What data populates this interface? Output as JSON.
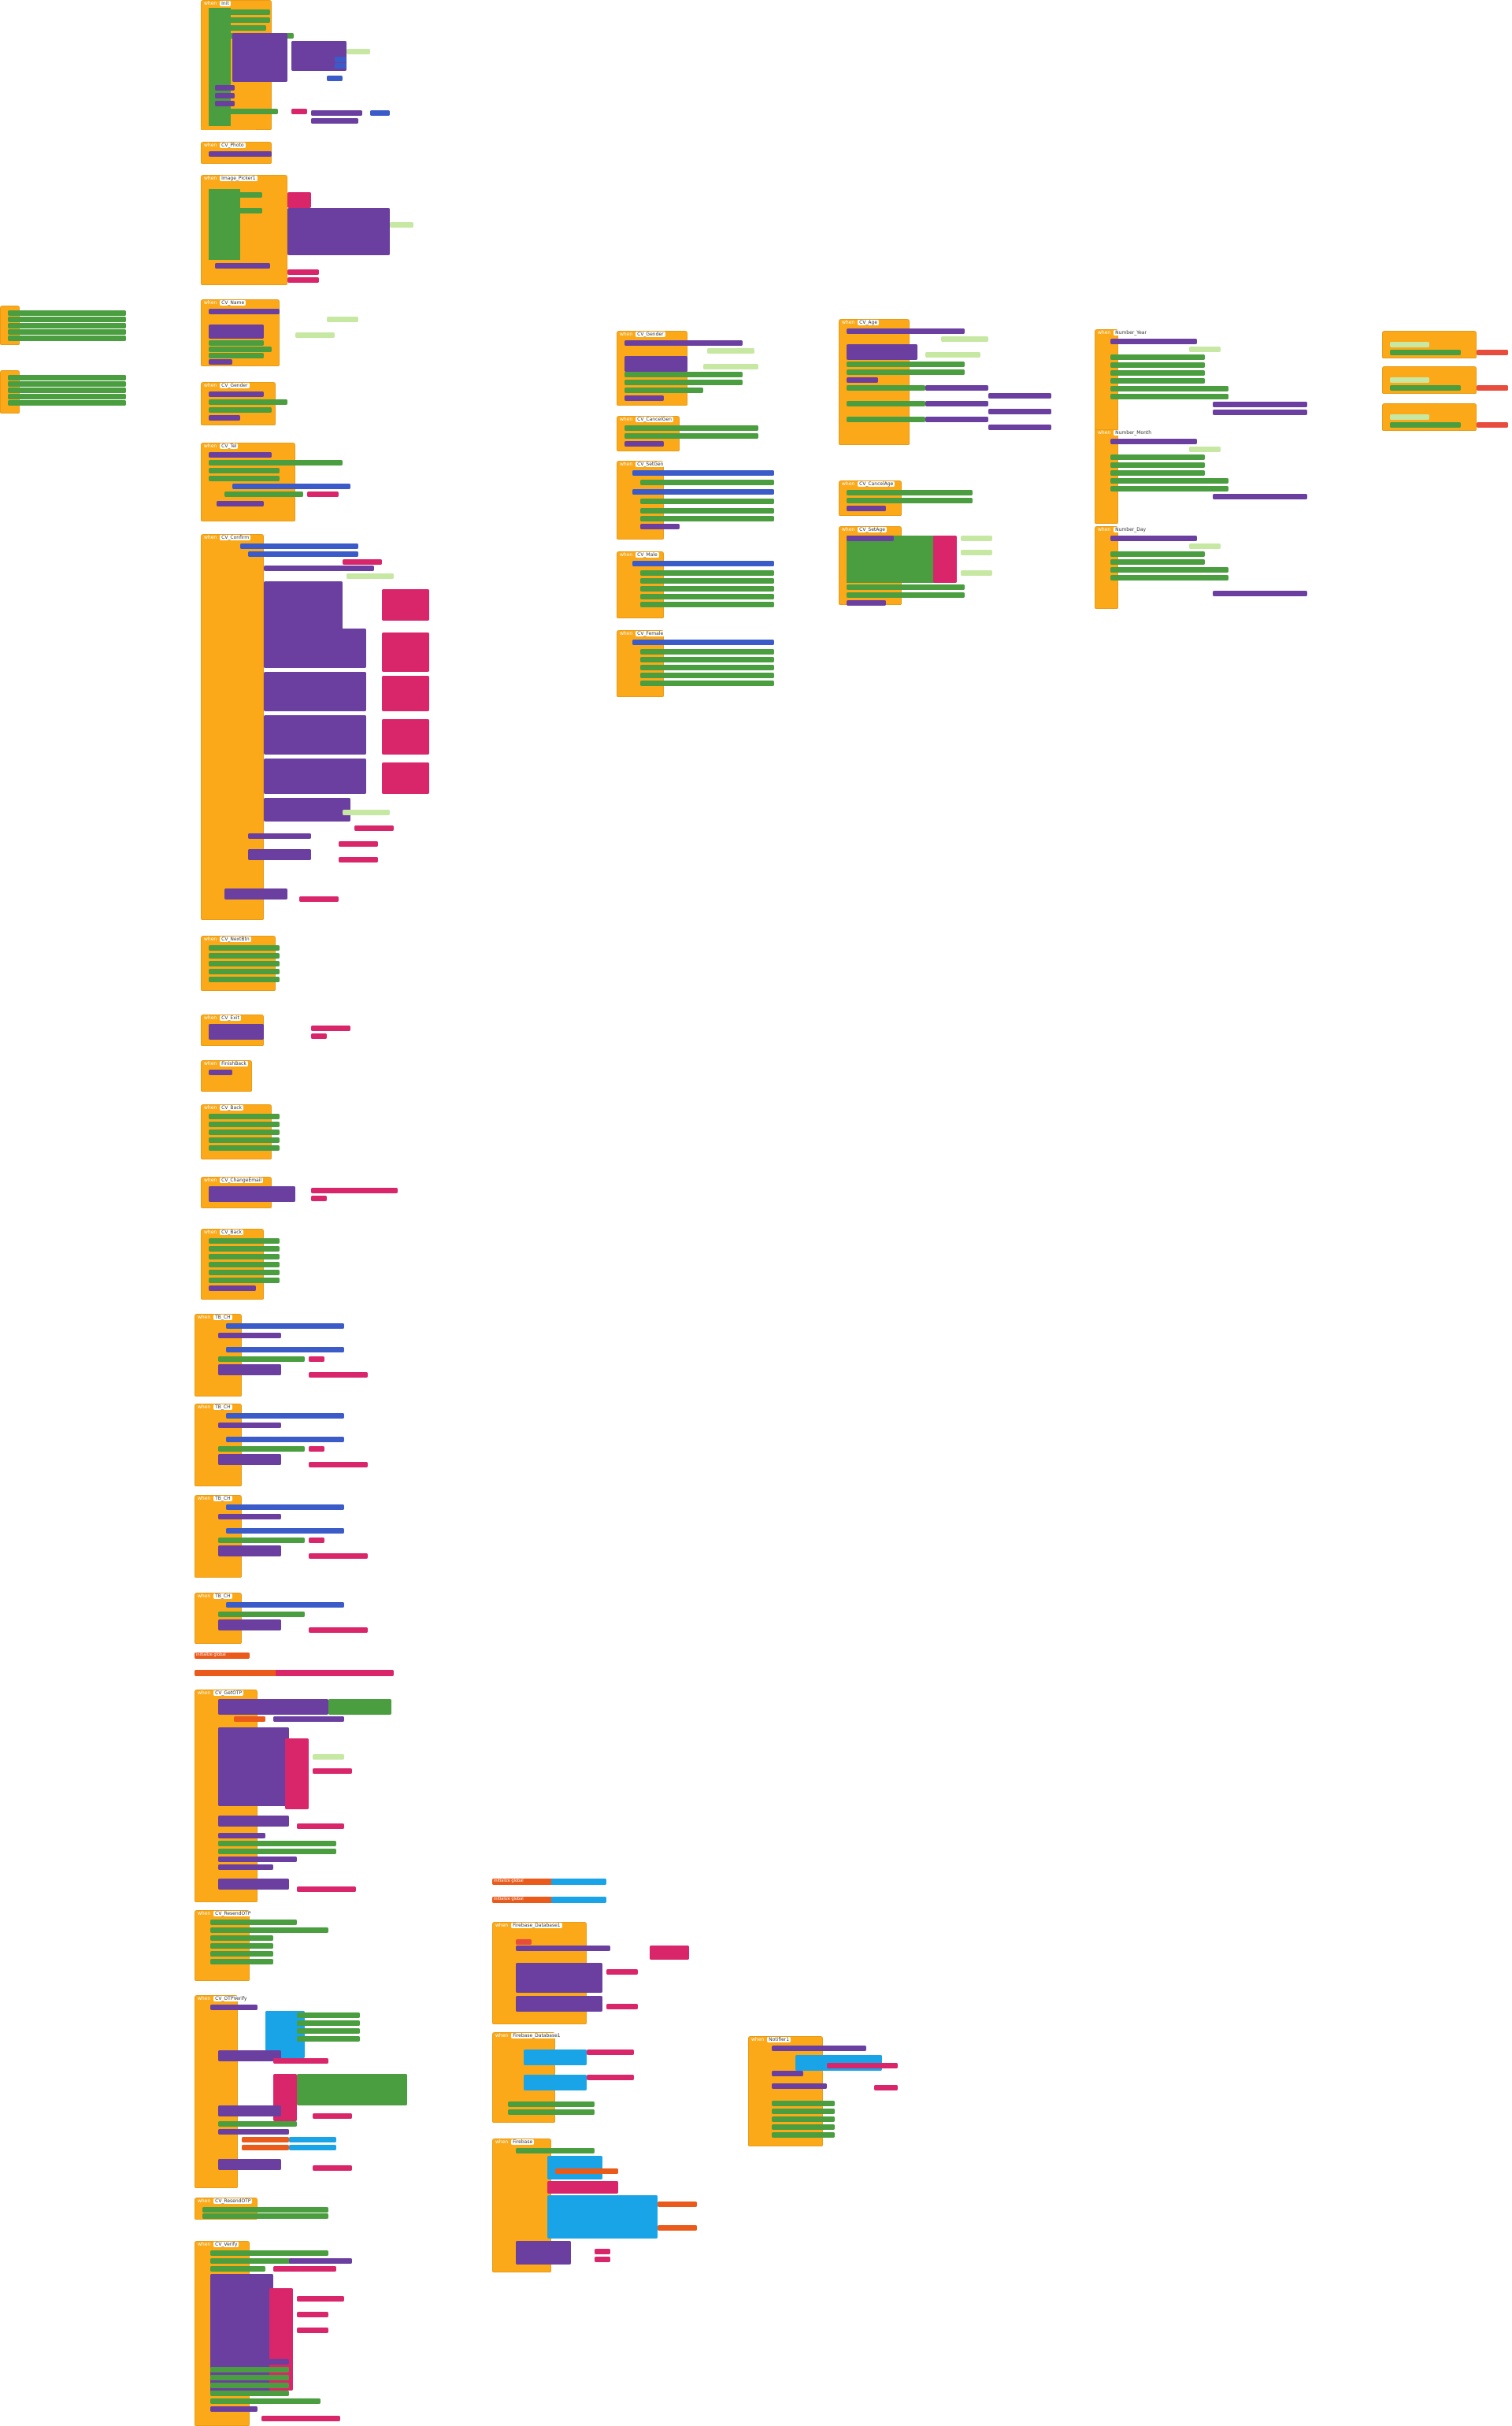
{
  "workspace": {
    "background": "#ffffff",
    "colors": {
      "event": "#fba919",
      "setter": "#4a9e3f",
      "component_call": "#6b3fa0",
      "text": "#d9266b",
      "text_value": "#c7e8a3",
      "math": "#3b5bc9",
      "control": "#1aa4e8",
      "variable": "#e95a1b"
    }
  },
  "blocks": {
    "init": {
      "header": "when",
      "name": "Init",
      "event": "Initialize"
    },
    "cv_photo": {
      "header": "when",
      "name": "CV_Photo",
      "event": "Click"
    },
    "image_picker": {
      "header": "when",
      "name": "Image_Picker1",
      "event": "AfterPicking"
    },
    "cv_name": {
      "header": "when",
      "name": "CV_Name",
      "event": "Click"
    },
    "cv_gender_top": {
      "header": "when",
      "name": "CV_Gender",
      "event": "Click"
    },
    "cv_tel": {
      "header": "when",
      "name": "CV_Tel",
      "event": "Click"
    },
    "cv_confirm": {
      "header": "when",
      "name": "CV_Confirm",
      "event": "Click"
    },
    "cv_gender": {
      "header": "when",
      "name": "CV_Gender",
      "event": "Click"
    },
    "cv_cancelgen": {
      "header": "when",
      "name": "CV_CancelGen",
      "event": "Click"
    },
    "cv_setgen": {
      "header": "when",
      "name": "CV_SetGen",
      "event": "Click"
    },
    "cv_male": {
      "header": "when",
      "name": "CV_Male",
      "event": "Click"
    },
    "cv_female": {
      "header": "when",
      "name": "CV_Female",
      "event": "Click"
    },
    "cv_age": {
      "header": "when",
      "name": "CV_Age",
      "event": "Click"
    },
    "cv_cancelage": {
      "header": "when",
      "name": "CV_CancelAge",
      "event": "Click"
    },
    "cv_setage": {
      "header": "when",
      "name": "CV_SetAge",
      "event": "Click"
    },
    "number_year": {
      "header": "when",
      "name": "Number_Year",
      "event": "AfterSelecting"
    },
    "number_month": {
      "header": "when",
      "name": "Number_Month",
      "event": "AfterSelecting"
    },
    "number_day": {
      "header": "when",
      "name": "Number_Day",
      "event": "AfterSelecting"
    },
    "cv_nextbtn": {
      "header": "when",
      "name": "CV_NextBtn",
      "event": "Click"
    },
    "cv_exit": {
      "header": "when",
      "name": "CV_Exit",
      "event": "Click"
    },
    "cv_back": {
      "header": "when",
      "name": "CV_Back",
      "event": "Click"
    },
    "cv_changeemail": {
      "header": "when",
      "name": "CV_ChangeEmail",
      "event": "Click"
    },
    "finish": {
      "header": "when",
      "name": "FinishBack",
      "event": "Click"
    },
    "tb_ch": {
      "header": "when",
      "name": "TB_CH",
      "event": "Changed"
    },
    "validators": {
      "header": "initialize global",
      "name": "validators"
    },
    "cv_getotp": {
      "header": "when",
      "name": "CV_GetOTP",
      "event": "Click"
    },
    "cv_otpverify": {
      "header": "when",
      "name": "CV_OTPVerify",
      "event": "Click"
    },
    "cv_resendotp": {
      "header": "when",
      "name": "CV_ResendOTP",
      "event": "Click"
    },
    "cv_verify": {
      "header": "when",
      "name": "CV_Verify",
      "event": "Click"
    },
    "firebase_got": {
      "header": "when",
      "name": "Firebase_Database1",
      "event": "GotValue"
    },
    "firebase_changed": {
      "header": "when",
      "name": "Firebase_Database1",
      "event": "DataChanged"
    },
    "firebase_tag": {
      "header": "when",
      "name": "Firebase",
      "event": "TagList"
    },
    "notifier": {
      "header": "when",
      "name": "Notifier1",
      "event": "AfterChoosing"
    },
    "global_email": {
      "header": "initialize global",
      "name": "email"
    },
    "global_name": {
      "header": "initialize global",
      "name": "name"
    }
  }
}
